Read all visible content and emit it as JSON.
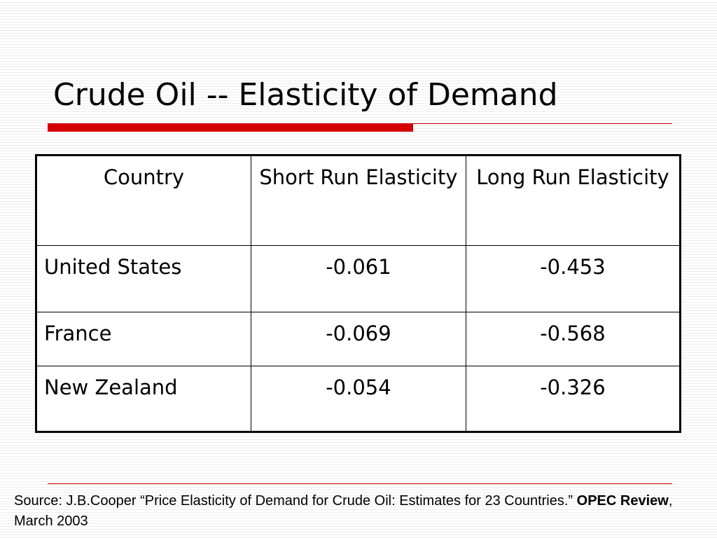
{
  "slide": {
    "title": "Crude Oil -- Elasticity of Demand"
  },
  "table": {
    "headers": {
      "country": "Country",
      "short_run": "Short Run Elasticity",
      "long_run": "Long Run Elasticity"
    },
    "rows": [
      {
        "country": "United States",
        "short_run": "-0.061",
        "long_run": "-0.453"
      },
      {
        "country": "France",
        "short_run": "-0.069",
        "long_run": "-0.568"
      },
      {
        "country": "New Zealand",
        "short_run": "-0.054",
        "long_run": "-0.326"
      }
    ]
  },
  "source": {
    "prefix": "Source: J.B.Cooper “Price Elasticity of Demand for Crude Oil: Estimates for 23 Countries.” ",
    "journal": "OPEC Review",
    "suffix": ", March 2003"
  },
  "colors": {
    "accent_rule": "#d40000",
    "background_stripe": "#ececec"
  }
}
